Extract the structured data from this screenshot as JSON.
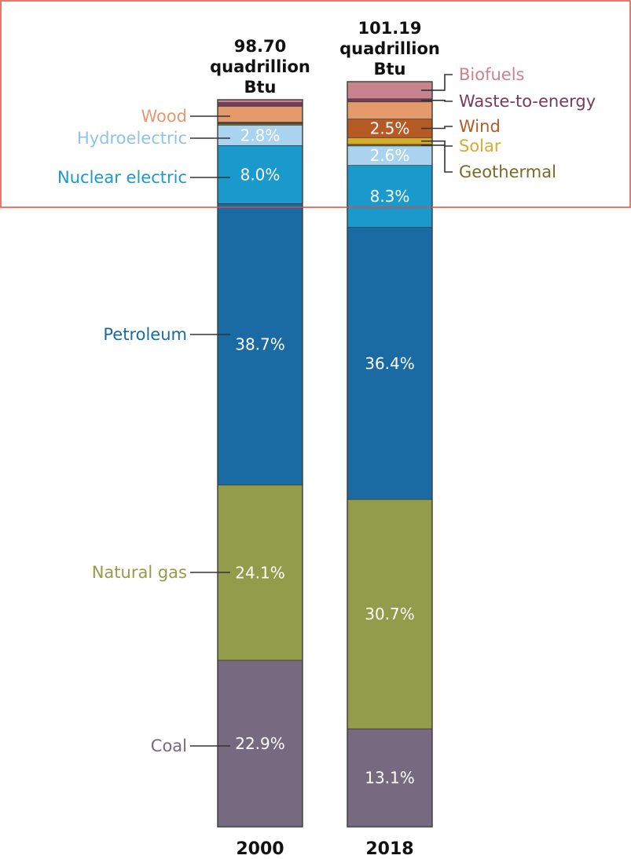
{
  "chart_data": {
    "type": "bar",
    "stacked": true,
    "normalized": "percent",
    "categories": [
      "2000",
      "2018"
    ],
    "totals": [
      [
        "98.70",
        "quadrillion",
        "Btu"
      ],
      [
        "101.19",
        "quadrillion",
        "Btu"
      ]
    ],
    "series": [
      {
        "name": "Coal",
        "color": "#766a80",
        "values": [
          22.9,
          13.1
        ],
        "labels": [
          "22.9%",
          "13.1%"
        ]
      },
      {
        "name": "Natural gas",
        "color": "#939c4a",
        "values": [
          24.1,
          30.7
        ],
        "labels": [
          "24.1%",
          "30.7%"
        ]
      },
      {
        "name": "Petroleum",
        "color": "#1a6aa3",
        "values": [
          38.7,
          36.4
        ],
        "labels": [
          "38.7%",
          "36.4%"
        ]
      },
      {
        "name": "Nuclear electric",
        "color": "#1a9acc",
        "values": [
          8.0,
          8.3
        ],
        "labels": [
          "8.0%",
          "8.3%"
        ]
      },
      {
        "name": "Hydroelectric",
        "color": "#a9d3ee",
        "values": [
          2.8,
          2.6
        ],
        "labels": [
          "2.8%",
          "2.6%"
        ]
      },
      {
        "name": "Geothermal",
        "color": "#7a6a28",
        "values": [
          0.2,
          0.2
        ],
        "labels": [
          "",
          ""
        ]
      },
      {
        "name": "Solar",
        "color": "#d7ac2c",
        "values": [
          0.1,
          0.9
        ],
        "labels": [
          "",
          ""
        ]
      },
      {
        "name": "Wind",
        "color": "#b55a25",
        "values": [
          0.1,
          2.5
        ],
        "labels": [
          "",
          "2.5%"
        ]
      },
      {
        "name": "Wood",
        "color": "#e59a6c",
        "values": [
          2.2,
          2.3
        ],
        "labels": [
          "",
          ""
        ]
      },
      {
        "name": "Waste-to-energy",
        "color": "#7b3a58",
        "values": [
          0.5,
          0.4
        ],
        "labels": [
          "",
          ""
        ]
      },
      {
        "name": "Biofuels",
        "color": "#c7838e",
        "values": [
          0.4,
          2.3
        ],
        "labels": [
          "",
          ""
        ]
      }
    ],
    "legend_left": [
      {
        "name": "Wood",
        "color": "#e59a6c"
      },
      {
        "name": "Hydroelectric",
        "color": "#8fc4e6"
      },
      {
        "name": "Nuclear electric",
        "color": "#1a9acc"
      },
      {
        "name": "Petroleum",
        "color": "#1a6aa3"
      },
      {
        "name": "Natural gas",
        "color": "#939c4a"
      },
      {
        "name": "Coal",
        "color": "#766a80"
      }
    ],
    "legend_right": [
      {
        "name": "Biofuels",
        "color": "#c7838e"
      },
      {
        "name": "Waste-to-energy",
        "color": "#7b3a58"
      },
      {
        "name": "Wind",
        "color": "#b55a25"
      },
      {
        "name": "Solar",
        "color": "#d7ac2c"
      },
      {
        "name": "Geothermal",
        "color": "#7a6a28"
      }
    ],
    "highlight_box_color": "#e24a3a"
  }
}
